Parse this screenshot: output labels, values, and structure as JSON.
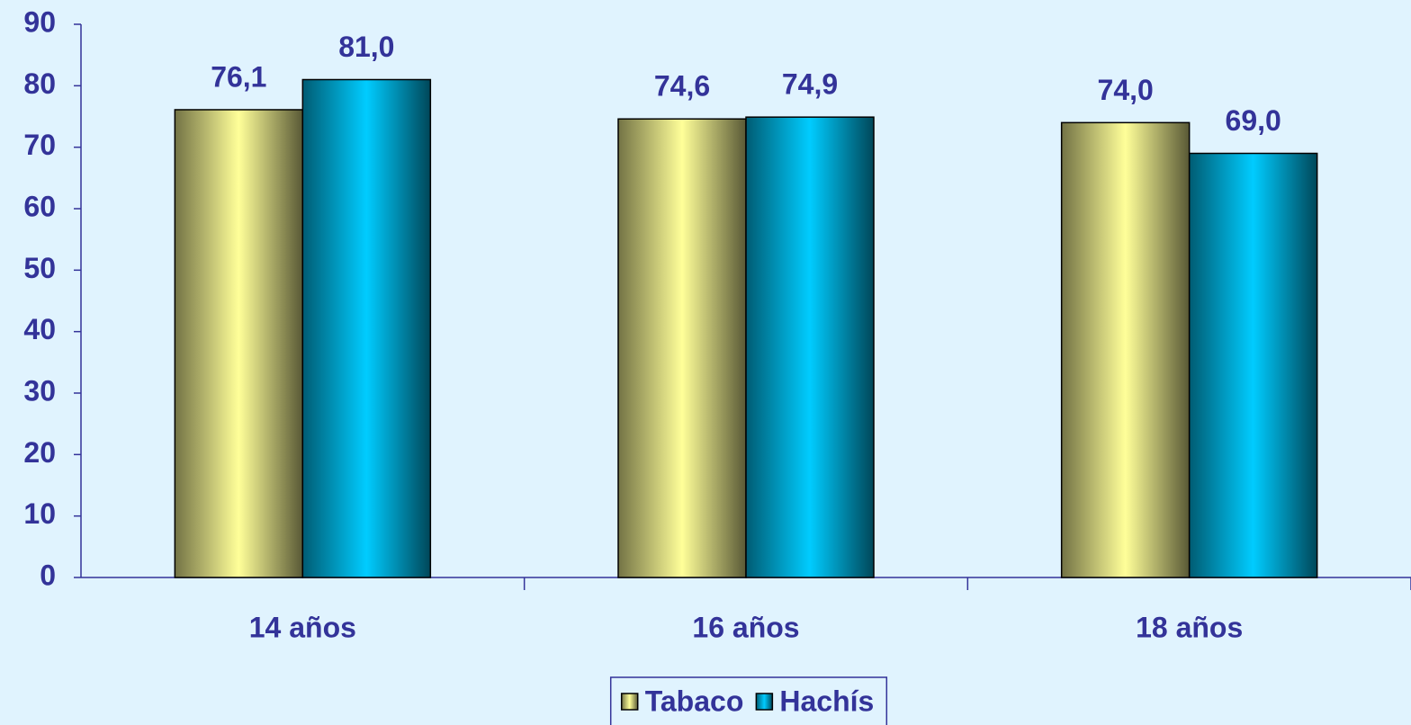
{
  "chart_data": {
    "type": "bar",
    "categories": [
      "14 años",
      "16 años",
      "18 años"
    ],
    "series": [
      {
        "name": "Tabaco",
        "color": "#ffff99",
        "values": [
          76.1,
          74.6,
          74.0
        ],
        "value_labels": [
          "76,1",
          "74,6",
          "74,0"
        ]
      },
      {
        "name": "Hachís",
        "color": "#00ccff",
        "values": [
          81.0,
          74.9,
          69.0
        ],
        "value_labels": [
          "81,0",
          "74,9",
          "69,0"
        ]
      }
    ],
    "ylim": [
      0,
      90
    ],
    "yticks": [
      0,
      10,
      20,
      30,
      40,
      50,
      60,
      70,
      80,
      90
    ],
    "legend": "bottom"
  }
}
